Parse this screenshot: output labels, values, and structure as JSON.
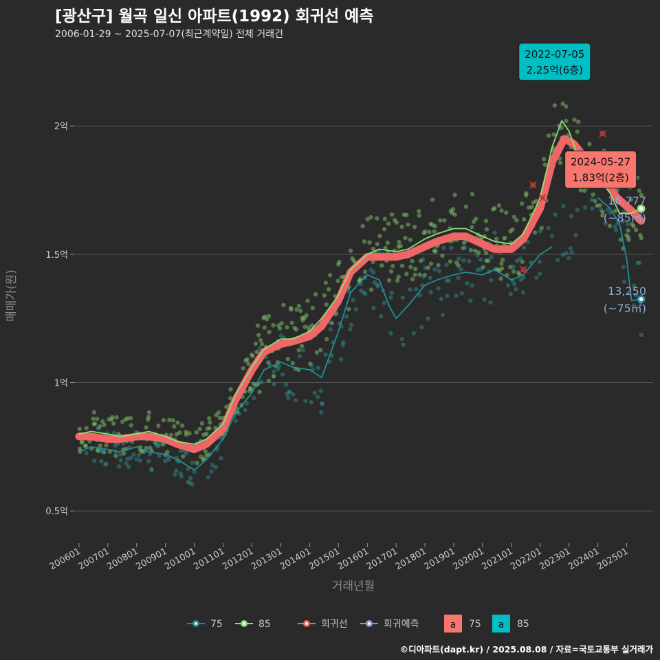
{
  "header": {
    "title": "[광산구] 월곡 일신 아파트(1992) 회귀선 예측",
    "subtitle": "2006-01-29 ~ 2025-07-07(최근계약일) 전체 거래건"
  },
  "caption": "©디아파트(dapt.kr) / 2025.08.08 / 자료=국토교통부 실거래가",
  "colors": {
    "background": "#2a2a2b",
    "grid": "#5a5a5a",
    "s75": "#1f8f96",
    "s85": "#8fe07a",
    "regression": "#f06666",
    "forecast": "#7f9fd1",
    "annotation_75": "#f8766d",
    "annotation_85": "#00bfc4"
  },
  "chart_data": {
    "type": "scatter",
    "xlabel": "거래년월",
    "ylabel": "매매가(원)",
    "xlim": [
      "2005-11",
      "2025-12"
    ],
    "ylim": [
      0.38,
      2.33
    ],
    "y_unit": "억",
    "yticks": [
      {
        "value": 0.5,
        "label": "0.5억"
      },
      {
        "value": 1.0,
        "label": "1억"
      },
      {
        "value": 1.5,
        "label": "1.5억"
      },
      {
        "value": 2.0,
        "label": "2억"
      }
    ],
    "xticks": [
      "200601",
      "200701",
      "200801",
      "200901",
      "201001",
      "201101",
      "201201",
      "201301",
      "201401",
      "201501",
      "201601",
      "201701",
      "201801",
      "201901",
      "202001",
      "202101",
      "202201",
      "202301",
      "202401",
      "202501"
    ],
    "series": [
      {
        "name": "75",
        "type": "line",
        "points": [
          [
            "2006-01",
            0.73
          ],
          [
            "2006-06",
            0.75
          ],
          [
            "2007-01",
            0.74
          ],
          [
            "2007-06",
            0.73
          ],
          [
            "2008-01",
            0.75
          ],
          [
            "2008-06",
            0.73
          ],
          [
            "2009-01",
            0.72
          ],
          [
            "2009-06",
            0.7
          ],
          [
            "2010-01",
            0.66
          ],
          [
            "2010-06",
            0.7
          ],
          [
            "2011-01",
            0.78
          ],
          [
            "2011-06",
            0.88
          ],
          [
            "2012-01",
            0.96
          ],
          [
            "2012-06",
            1.05
          ],
          [
            "2013-01",
            1.08
          ],
          [
            "2013-06",
            1.06
          ],
          [
            "2014-01",
            1.05
          ],
          [
            "2014-06",
            1.02
          ],
          [
            "2015-01",
            1.2
          ],
          [
            "2015-06",
            1.35
          ],
          [
            "2016-01",
            1.42
          ],
          [
            "2016-06",
            1.4
          ],
          [
            "2016-10",
            1.3
          ],
          [
            "2017-01",
            1.25
          ],
          [
            "2017-06",
            1.3
          ],
          [
            "2018-01",
            1.38
          ],
          [
            "2018-06",
            1.4
          ],
          [
            "2019-01",
            1.42
          ],
          [
            "2019-06",
            1.43
          ],
          [
            "2020-01",
            1.42
          ],
          [
            "2020-06",
            1.44
          ],
          [
            "2021-01",
            1.4
          ],
          [
            "2021-06",
            1.42
          ],
          [
            "2022-01",
            1.5
          ],
          [
            "2022-06",
            1.53
          ],
          [
            "2023-06",
            null
          ],
          [
            "2024-01",
            1.72
          ],
          [
            "2024-06",
            1.68
          ],
          [
            "2024-10",
            1.62
          ],
          [
            "2025-01",
            1.48
          ],
          [
            "2025-03",
            1.32
          ],
          [
            "2025-07",
            1.325
          ]
        ]
      },
      {
        "name": "85",
        "type": "line",
        "points": [
          [
            "2006-01",
            0.8
          ],
          [
            "2006-06",
            0.81
          ],
          [
            "2007-01",
            0.8
          ],
          [
            "2007-06",
            0.79
          ],
          [
            "2008-01",
            0.8
          ],
          [
            "2008-06",
            0.81
          ],
          [
            "2009-01",
            0.79
          ],
          [
            "2009-06",
            0.77
          ],
          [
            "2010-01",
            0.76
          ],
          [
            "2010-06",
            0.78
          ],
          [
            "2011-01",
            0.84
          ],
          [
            "2011-06",
            0.95
          ],
          [
            "2012-01",
            1.06
          ],
          [
            "2012-06",
            1.13
          ],
          [
            "2013-01",
            1.17
          ],
          [
            "2013-06",
            1.17
          ],
          [
            "2014-01",
            1.2
          ],
          [
            "2014-06",
            1.25
          ],
          [
            "2015-01",
            1.34
          ],
          [
            "2015-06",
            1.44
          ],
          [
            "2016-01",
            1.5
          ],
          [
            "2016-06",
            1.52
          ],
          [
            "2017-01",
            1.51
          ],
          [
            "2017-06",
            1.52
          ],
          [
            "2018-01",
            1.56
          ],
          [
            "2018-06",
            1.58
          ],
          [
            "2019-01",
            1.6
          ],
          [
            "2019-06",
            1.6
          ],
          [
            "2020-01",
            1.57
          ],
          [
            "2020-06",
            1.55
          ],
          [
            "2021-01",
            1.54
          ],
          [
            "2021-06",
            1.58
          ],
          [
            "2022-01",
            1.72
          ],
          [
            "2022-06",
            1.92
          ],
          [
            "2022-10",
            2.02
          ],
          [
            "2023-01",
            1.98
          ],
          [
            "2023-06",
            1.85
          ],
          [
            "2024-01",
            1.8
          ],
          [
            "2024-06",
            1.74
          ],
          [
            "2024-10",
            1.66
          ],
          [
            "2025-03",
            1.66
          ],
          [
            "2025-07",
            1.6777
          ]
        ]
      },
      {
        "name": "회귀선",
        "type": "line",
        "points": [
          [
            "2006-01",
            0.79
          ],
          [
            "2006-06",
            0.79
          ],
          [
            "2007-01",
            0.78
          ],
          [
            "2007-06",
            0.78
          ],
          [
            "2008-01",
            0.79
          ],
          [
            "2008-06",
            0.79
          ],
          [
            "2009-01",
            0.78
          ],
          [
            "2009-06",
            0.76
          ],
          [
            "2010-01",
            0.74
          ],
          [
            "2010-06",
            0.76
          ],
          [
            "2011-01",
            0.82
          ],
          [
            "2011-06",
            0.93
          ],
          [
            "2012-01",
            1.05
          ],
          [
            "2012-06",
            1.12
          ],
          [
            "2013-01",
            1.15
          ],
          [
            "2013-06",
            1.16
          ],
          [
            "2014-01",
            1.18
          ],
          [
            "2014-06",
            1.22
          ],
          [
            "2015-01",
            1.32
          ],
          [
            "2015-06",
            1.43
          ],
          [
            "2016-01",
            1.49
          ],
          [
            "2016-06",
            1.49
          ],
          [
            "2017-01",
            1.49
          ],
          [
            "2017-06",
            1.5
          ],
          [
            "2018-01",
            1.53
          ],
          [
            "2018-06",
            1.55
          ],
          [
            "2019-01",
            1.57
          ],
          [
            "2019-06",
            1.57
          ],
          [
            "2020-01",
            1.54
          ],
          [
            "2020-06",
            1.52
          ],
          [
            "2021-01",
            1.52
          ],
          [
            "2021-06",
            1.56
          ],
          [
            "2022-01",
            1.68
          ],
          [
            "2022-06",
            1.86
          ],
          [
            "2022-11",
            1.95
          ],
          [
            "2023-03",
            1.93
          ],
          [
            "2023-09",
            1.86
          ],
          [
            "2024-03",
            1.8
          ],
          [
            "2024-09",
            1.72
          ],
          [
            "2025-03",
            1.67
          ],
          [
            "2025-07",
            1.63
          ]
        ]
      }
    ],
    "legend": {
      "position": "bottom",
      "items": [
        {
          "name": "75",
          "color": "#1f8f96"
        },
        {
          "name": "85",
          "color": "#8fe07a"
        },
        {
          "name": "회귀선",
          "color": "#f06666"
        },
        {
          "name": "회귀예측",
          "color": "#7f9fd1"
        }
      ],
      "label_items": [
        {
          "glyph": "a",
          "name": "75",
          "color": "#f8766d"
        },
        {
          "glyph": "a",
          "name": "85",
          "color": "#00bfc4"
        }
      ]
    },
    "annotations": [
      {
        "date_label": "2022-07-05",
        "value_label": "2.25억(6층)",
        "x": "2022-07",
        "y": 2.25,
        "style": "85"
      },
      {
        "date_label": "2024-05-27",
        "value_label": "1.83억(2층)",
        "x": "2024-05",
        "y": 1.83,
        "style": "75"
      }
    ],
    "end_labels": [
      {
        "value_label": "16,777",
        "area_label": "(~85㎡)",
        "x": "2025-07",
        "y": 1.6777,
        "series": "85"
      },
      {
        "value_label": "13,250",
        "area_label": "(~75㎡)",
        "x": "2025-07",
        "y": 1.325,
        "series": "75"
      }
    ],
    "outliers": [
      [
        "2021-10",
        1.77
      ],
      [
        "2022-02",
        1.72
      ],
      [
        "2021-06",
        1.44
      ],
      [
        "2024-03",
        1.97
      ]
    ]
  }
}
